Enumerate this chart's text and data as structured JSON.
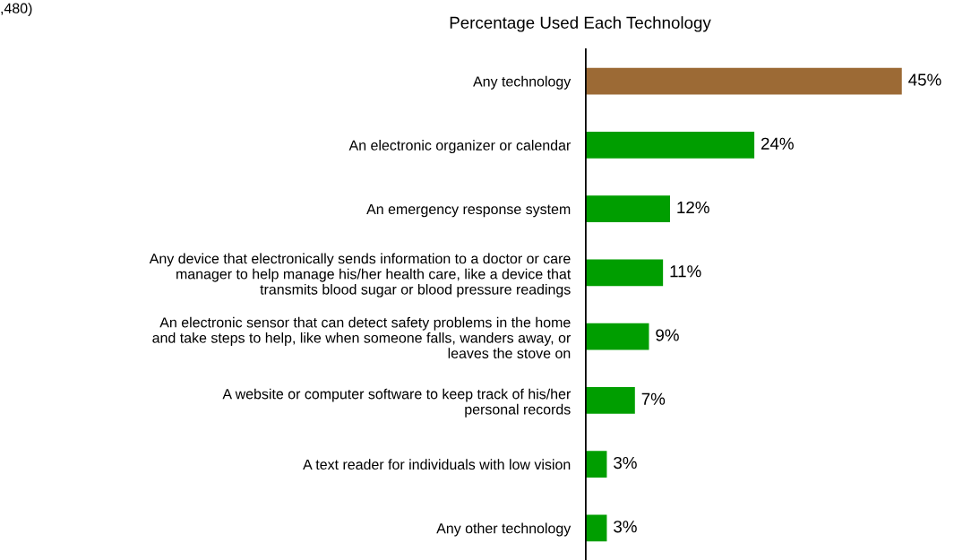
{
  "chart_data": {
    "type": "bar",
    "orientation": "horizontal",
    "title": "Percentage Used Each Technology",
    "annotations": [
      ",480)"
    ],
    "categories": [
      "Any technology",
      "An electronic organizer or calendar",
      "An emergency response system",
      "Any device that electronically sends information to a doctor or care\nmanager to help manage his/her health care, like a device that\ntransmits blood sugar or blood pressure readings",
      "An electronic sensor that can detect safety problems in the home\nand take steps to help, like when someone falls, wanders away, or\nleaves the stove on",
      "A website or computer software to keep track of his/her\npersonal records",
      "A text reader for individuals with low vision",
      "Any other technology"
    ],
    "values": [
      45,
      24,
      12,
      11,
      9,
      7,
      3,
      3
    ],
    "colors": [
      "#9c6a35",
      "#009e00",
      "#009e00",
      "#009e00",
      "#009e00",
      "#009e00",
      "#009e00",
      "#009e00"
    ],
    "value_labels": [
      "45%",
      "24%",
      "12%",
      "11%",
      "9%",
      "7%",
      "3%",
      "3%"
    ],
    "grid": false,
    "legend": false
  }
}
